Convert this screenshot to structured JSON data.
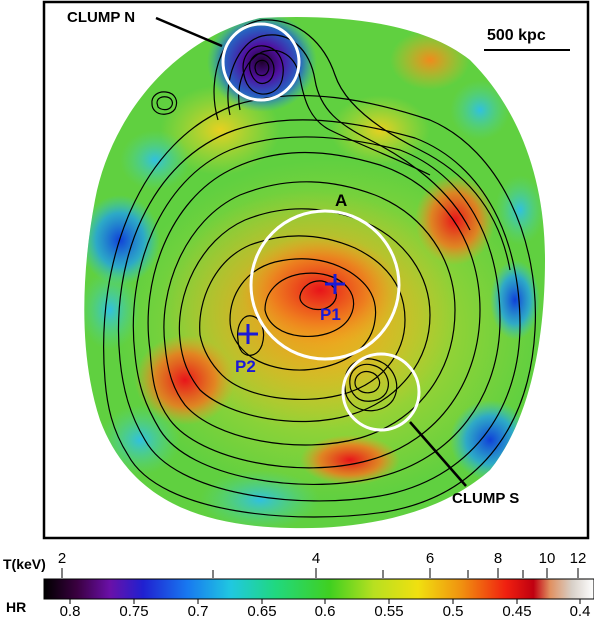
{
  "labels": {
    "clump_n": "CLUMP N",
    "clump_s": "CLUMP S",
    "region_a": "A",
    "p1": "P1",
    "p2": "P2",
    "scale_bar": "500 kpc"
  },
  "colorbar": {
    "temp_axis_label": "T(keV)",
    "temp_ticks": [
      "2",
      "4",
      "6",
      "8",
      "10",
      "12"
    ],
    "hr_axis_label": "HR",
    "hr_ticks": [
      "0.8",
      "0.75",
      "0.7",
      "0.65",
      "0.6",
      "0.55",
      "0.5",
      "0.45",
      "0.4"
    ]
  },
  "colors": {
    "contour": "#000000",
    "circles": "#ffffff",
    "markers": "#1a1ad6",
    "background": "#ffffff"
  }
}
